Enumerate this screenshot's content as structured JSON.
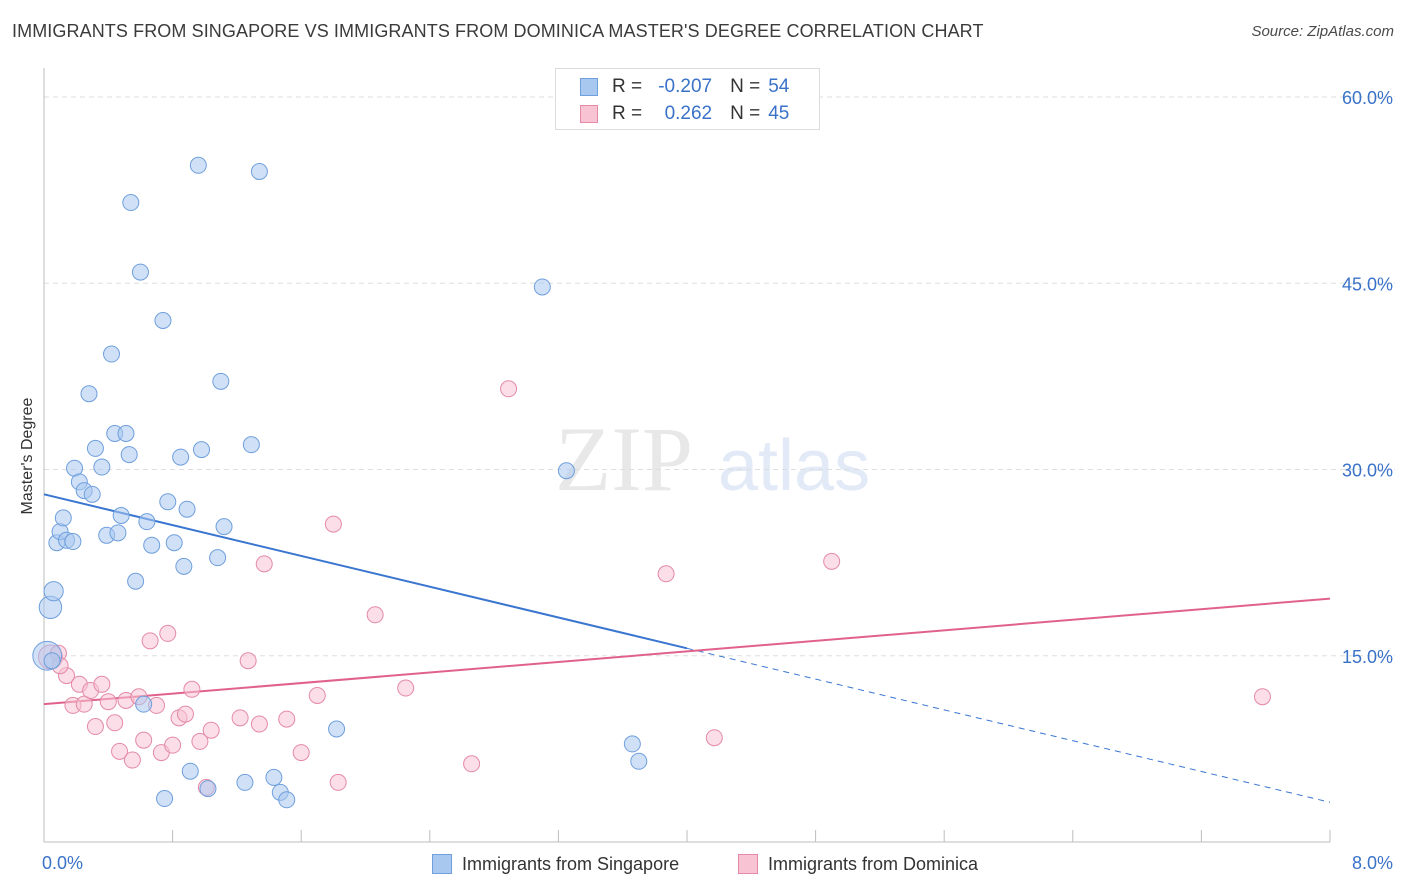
{
  "title": "IMMIGRANTS FROM SINGAPORE VS IMMIGRANTS FROM DOMINICA MASTER'S DEGREE CORRELATION CHART",
  "source": "Source: ZipAtlas.com",
  "watermark": {
    "zip": "ZIP",
    "atlas": "atlas"
  },
  "legend": {
    "rows": [
      {
        "r_label": "R =",
        "r_value": "-0.207",
        "n_label": "N =",
        "n_value": "54",
        "color": "#a9c8f0",
        "border": "#6f9fdc"
      },
      {
        "r_label": "R =",
        "r_value": "0.262",
        "n_label": "N =",
        "n_value": "45",
        "color": "#f8c3d3",
        "border": "#e48aa7"
      }
    ]
  },
  "bottom_legend": {
    "singapore": "Immigrants from Singapore",
    "dominica": "Immigrants from Dominica"
  },
  "chart_data": {
    "type": "scatter",
    "title": "IMMIGRANTS FROM SINGAPORE VS IMMIGRANTS FROM DOMINICA MASTER'S DEGREE CORRELATION CHART",
    "xlabel": "",
    "ylabel": "Master's Degree",
    "xlim": [
      0,
      8
    ],
    "ylim": [
      0,
      60
    ],
    "x_tick_labels": [
      "0.0%",
      "8.0%"
    ],
    "y_ticks": [
      15,
      30,
      45,
      60
    ],
    "y_tick_labels": [
      "15.0%",
      "30.0%",
      "45.0%",
      "60.0%"
    ],
    "grid": true,
    "colors": {
      "singapore_fill": "#a9c8f0",
      "singapore_stroke": "#6f9fdc",
      "singapore_line": "#3a76d0",
      "dominica_fill": "#f8c3d3",
      "dominica_stroke": "#e48aa7",
      "dominica_line": "#e0628c",
      "axis_text": "#3a72c8"
    },
    "series": [
      {
        "name": "Immigrants from Singapore",
        "r": -0.207,
        "n": 54,
        "trend": {
          "x0": 0,
          "y0": 28.0,
          "x1": 4.0,
          "y1": 15.6,
          "dash_x1": 8.0,
          "dash_y1": 3.2
        },
        "points": [
          [
            0.02,
            15.0,
            1.8
          ],
          [
            0.04,
            18.9,
            1.4
          ],
          [
            0.06,
            20.2,
            1.2
          ],
          [
            0.08,
            24.1,
            1.0
          ],
          [
            0.1,
            25.0,
            1.0
          ],
          [
            0.12,
            26.1,
            1.0
          ],
          [
            0.14,
            24.3,
            1.0
          ],
          [
            0.18,
            24.2,
            1.0
          ],
          [
            0.19,
            30.1,
            1.0
          ],
          [
            0.22,
            29.0,
            1.0
          ],
          [
            0.25,
            28.3,
            1.0
          ],
          [
            0.28,
            36.1,
            1.0
          ],
          [
            0.3,
            28.0,
            1.0
          ],
          [
            0.32,
            31.7,
            1.0
          ],
          [
            0.36,
            30.2,
            1.0
          ],
          [
            0.39,
            24.7,
            1.0
          ],
          [
            0.42,
            39.3,
            1.0
          ],
          [
            0.44,
            32.9,
            1.0
          ],
          [
            0.46,
            24.9,
            1.0
          ],
          [
            0.48,
            26.3,
            1.0
          ],
          [
            0.51,
            32.9,
            1.0
          ],
          [
            0.53,
            31.2,
            1.0
          ],
          [
            0.54,
            51.5,
            1.0
          ],
          [
            0.57,
            21.0,
            1.0
          ],
          [
            0.6,
            45.9,
            1.0
          ],
          [
            0.62,
            11.1,
            1.0
          ],
          [
            0.64,
            25.8,
            1.0
          ],
          [
            0.67,
            23.9,
            1.0
          ],
          [
            0.74,
            42.0,
            1.0
          ],
          [
            0.75,
            3.5,
            1.0
          ],
          [
            0.77,
            27.4,
            1.0
          ],
          [
            0.81,
            24.1,
            1.0
          ],
          [
            0.85,
            31.0,
            1.0
          ],
          [
            0.87,
            22.2,
            1.0
          ],
          [
            0.89,
            26.8,
            1.0
          ],
          [
            0.91,
            5.7,
            1.0
          ],
          [
            0.96,
            54.5,
            1.0
          ],
          [
            0.98,
            31.6,
            1.0
          ],
          [
            1.02,
            4.3,
            1.0
          ],
          [
            1.08,
            22.9,
            1.0
          ],
          [
            1.1,
            37.1,
            1.0
          ],
          [
            1.12,
            25.4,
            1.0
          ],
          [
            1.25,
            4.8,
            1.0
          ],
          [
            1.29,
            32.0,
            1.0
          ],
          [
            1.34,
            54.0,
            1.0
          ],
          [
            1.43,
            5.2,
            1.0
          ],
          [
            1.47,
            4.0,
            1.0
          ],
          [
            1.51,
            3.4,
            1.0
          ],
          [
            1.82,
            9.1,
            1.0
          ],
          [
            3.1,
            44.7,
            1.0
          ],
          [
            3.25,
            29.9,
            1.0
          ],
          [
            3.66,
            7.9,
            1.0
          ],
          [
            3.7,
            6.5,
            1.0
          ],
          [
            0.05,
            14.6,
            1.0
          ]
        ]
      },
      {
        "name": "Immigrants from Dominica",
        "r": 0.262,
        "n": 45,
        "trend": {
          "x0": 0,
          "y0": 11.1,
          "x1": 8.0,
          "y1": 19.6
        },
        "points": [
          [
            0.04,
            14.9,
            1.5
          ],
          [
            0.09,
            15.2,
            1.0
          ],
          [
            0.14,
            13.4,
            1.0
          ],
          [
            0.18,
            11.0,
            1.0
          ],
          [
            0.22,
            12.7,
            1.0
          ],
          [
            0.25,
            11.1,
            1.0
          ],
          [
            0.29,
            12.2,
            1.0
          ],
          [
            0.32,
            9.3,
            1.0
          ],
          [
            0.36,
            12.7,
            1.0
          ],
          [
            0.4,
            11.3,
            1.0
          ],
          [
            0.44,
            9.6,
            1.0
          ],
          [
            0.47,
            7.3,
            1.0
          ],
          [
            0.51,
            11.4,
            1.0
          ],
          [
            0.55,
            6.6,
            1.0
          ],
          [
            0.59,
            11.7,
            1.0
          ],
          [
            0.62,
            8.2,
            1.0
          ],
          [
            0.66,
            16.2,
            1.0
          ],
          [
            0.7,
            11.0,
            1.0
          ],
          [
            0.73,
            7.2,
            1.0
          ],
          [
            0.77,
            16.8,
            1.0
          ],
          [
            0.8,
            7.8,
            1.0
          ],
          [
            0.84,
            10.0,
            1.0
          ],
          [
            0.88,
            10.3,
            1.0
          ],
          [
            0.92,
            12.3,
            1.0
          ],
          [
            0.97,
            8.1,
            1.0
          ],
          [
            1.01,
            4.4,
            1.0
          ],
          [
            1.04,
            9.0,
            1.0
          ],
          [
            1.22,
            10.0,
            1.0
          ],
          [
            1.27,
            14.6,
            1.0
          ],
          [
            1.34,
            9.5,
            1.0
          ],
          [
            1.37,
            22.4,
            1.0
          ],
          [
            1.51,
            9.9,
            1.0
          ],
          [
            1.6,
            7.2,
            1.0
          ],
          [
            1.7,
            11.8,
            1.0
          ],
          [
            1.8,
            25.6,
            1.0
          ],
          [
            1.83,
            4.8,
            1.0
          ],
          [
            2.06,
            18.3,
            1.0
          ],
          [
            2.25,
            12.4,
            1.0
          ],
          [
            2.66,
            6.3,
            1.0
          ],
          [
            2.89,
            36.5,
            1.0
          ],
          [
            3.87,
            21.6,
            1.0
          ],
          [
            4.17,
            8.4,
            1.0
          ],
          [
            4.9,
            22.6,
            1.0
          ],
          [
            7.58,
            11.7,
            1.0
          ],
          [
            0.1,
            14.2,
            1.0
          ]
        ]
      }
    ]
  }
}
